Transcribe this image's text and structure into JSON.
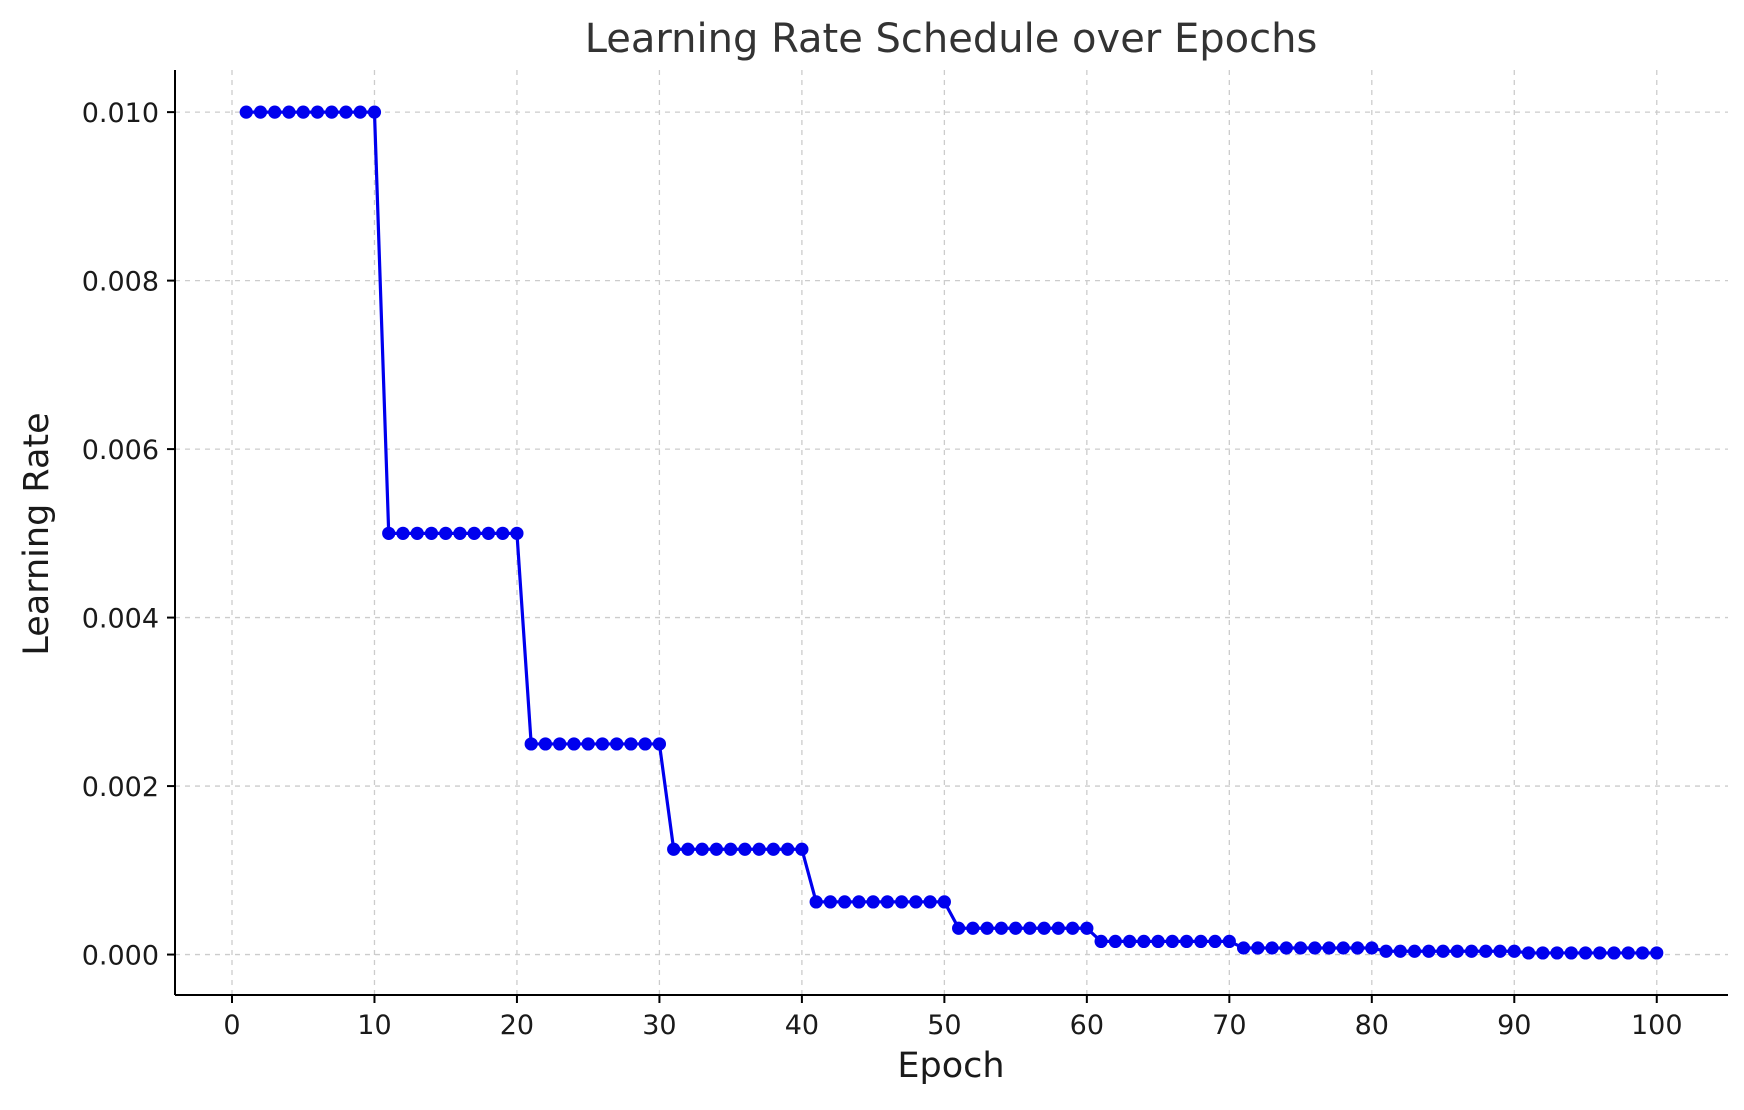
{
  "chart_data": {
    "type": "line",
    "title": "Learning Rate Schedule over Epochs",
    "xlabel": "Epoch",
    "ylabel": "Learning Rate",
    "xlim": [
      -4,
      105
    ],
    "ylim": [
      -0.00048,
      0.0105
    ],
    "grid": true,
    "legend": "none",
    "x_ticks": [
      0,
      10,
      20,
      30,
      40,
      50,
      60,
      70,
      80,
      90,
      100
    ],
    "x_tick_labels": [
      "0",
      "10",
      "20",
      "30",
      "40",
      "50",
      "60",
      "70",
      "80",
      "90",
      "100"
    ],
    "y_ticks": [
      0.0,
      0.002,
      0.004,
      0.006,
      0.008,
      0.01
    ],
    "y_tick_labels": [
      "0.000",
      "0.002",
      "0.004",
      "0.006",
      "0.008",
      "0.010"
    ],
    "series": [
      {
        "color": "#0000ee",
        "marker": "circle",
        "x": [
          1,
          2,
          3,
          4,
          5,
          6,
          7,
          8,
          9,
          10,
          11,
          12,
          13,
          14,
          15,
          16,
          17,
          18,
          19,
          20,
          21,
          22,
          23,
          24,
          25,
          26,
          27,
          28,
          29,
          30,
          31,
          32,
          33,
          34,
          35,
          36,
          37,
          38,
          39,
          40,
          41,
          42,
          43,
          44,
          45,
          46,
          47,
          48,
          49,
          50,
          51,
          52,
          53,
          54,
          55,
          56,
          57,
          58,
          59,
          60,
          61,
          62,
          63,
          64,
          65,
          66,
          67,
          68,
          69,
          70,
          71,
          72,
          73,
          74,
          75,
          76,
          77,
          78,
          79,
          80,
          81,
          82,
          83,
          84,
          85,
          86,
          87,
          88,
          89,
          90,
          91,
          92,
          93,
          94,
          95,
          96,
          97,
          98,
          99,
          100
        ],
        "y": [
          0.01,
          0.01,
          0.01,
          0.01,
          0.01,
          0.01,
          0.01,
          0.01,
          0.01,
          0.01,
          0.005,
          0.005,
          0.005,
          0.005,
          0.005,
          0.005,
          0.005,
          0.005,
          0.005,
          0.005,
          0.0025,
          0.0025,
          0.0025,
          0.0025,
          0.0025,
          0.0025,
          0.0025,
          0.0025,
          0.0025,
          0.0025,
          0.00125,
          0.00125,
          0.00125,
          0.00125,
          0.00125,
          0.00125,
          0.00125,
          0.00125,
          0.00125,
          0.00125,
          0.000625,
          0.000625,
          0.000625,
          0.000625,
          0.000625,
          0.000625,
          0.000625,
          0.000625,
          0.000625,
          0.000625,
          0.0003125,
          0.0003125,
          0.0003125,
          0.0003125,
          0.0003125,
          0.0003125,
          0.0003125,
          0.0003125,
          0.0003125,
          0.0003125,
          0.00015625,
          0.00015625,
          0.00015625,
          0.00015625,
          0.00015625,
          0.00015625,
          0.00015625,
          0.00015625,
          0.00015625,
          0.00015625,
          7.8125e-05,
          7.8125e-05,
          7.8125e-05,
          7.8125e-05,
          7.8125e-05,
          7.8125e-05,
          7.8125e-05,
          7.8125e-05,
          7.8125e-05,
          7.8125e-05,
          3.90625e-05,
          3.90625e-05,
          3.90625e-05,
          3.90625e-05,
          3.90625e-05,
          3.90625e-05,
          3.90625e-05,
          3.90625e-05,
          3.90625e-05,
          3.90625e-05,
          1.953125e-05,
          1.953125e-05,
          1.953125e-05,
          1.953125e-05,
          1.953125e-05,
          1.953125e-05,
          1.953125e-05,
          1.953125e-05,
          1.953125e-05,
          1.953125e-05
        ]
      }
    ]
  }
}
